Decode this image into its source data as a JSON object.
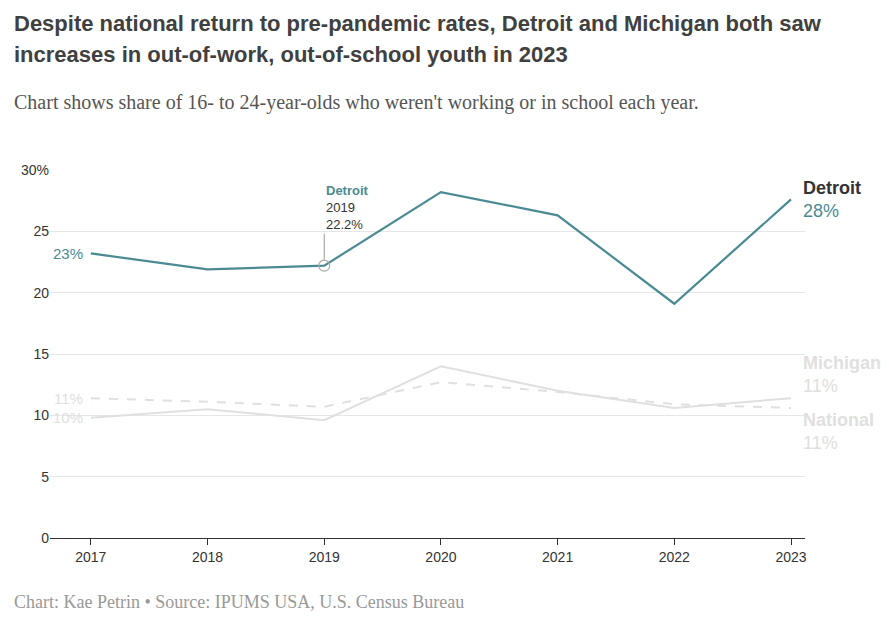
{
  "chart_data": {
    "type": "line",
    "title": "Despite national return to pre-pandemic rates, Detroit and Michigan both saw increases in out-of-work, out-of-school youth in 2023",
    "subtitle": "Chart shows share of 16- to 24-year-olds who weren't working or in school each year.",
    "caption": "Chart: Kae Petrin • Source: IPUMS USA, U.S. Census Bureau",
    "x": [
      2017,
      2018,
      2019,
      2020,
      2021,
      2022,
      2023
    ],
    "series": [
      {
        "name": "Detroit",
        "color": "#4a8b93",
        "line_style": "solid",
        "values": [
          23.2,
          21.9,
          22.2,
          28.2,
          26.3,
          19.1,
          27.6
        ]
      },
      {
        "name": "Michigan",
        "color": "#e0e0e0",
        "line_style": "solid",
        "values": [
          9.8,
          10.5,
          9.6,
          14.0,
          12.0,
          10.6,
          11.4
        ]
      },
      {
        "name": "National",
        "color": "#e0e0e0",
        "line_style": "dashed",
        "values": [
          11.4,
          11.1,
          10.7,
          12.7,
          11.9,
          10.9,
          10.6
        ]
      }
    ],
    "xlim": [
      2016.65,
      2023.12
    ],
    "xticks": [
      2017,
      2018,
      2019,
      2020,
      2021,
      2022,
      2023
    ],
    "ylim": [
      0,
      30
    ],
    "yticks": [
      0,
      5,
      10,
      15,
      20,
      25,
      {
        "value": 30,
        "label": "30%"
      }
    ],
    "grid": true,
    "annotations": [
      {
        "series": "Detroit",
        "x": 2017,
        "text": [
          "23%"
        ]
      },
      {
        "series": "National",
        "x": 2017,
        "text": [
          "11%"
        ]
      },
      {
        "series": "Michigan",
        "x": 2017,
        "text": [
          "10%"
        ]
      },
      {
        "series": "Detroit",
        "x": 2019,
        "text": [
          "Detroit",
          "2019",
          "22.2%"
        ]
      },
      {
        "series": "Detroit",
        "x": 2023,
        "text": [
          "Detroit",
          "28%"
        ]
      },
      {
        "series": "Michigan",
        "x": 2023,
        "text": [
          "Michigan",
          "11%"
        ]
      },
      {
        "series": "National",
        "x": 2023,
        "text": [
          "National",
          "11%"
        ]
      }
    ]
  }
}
